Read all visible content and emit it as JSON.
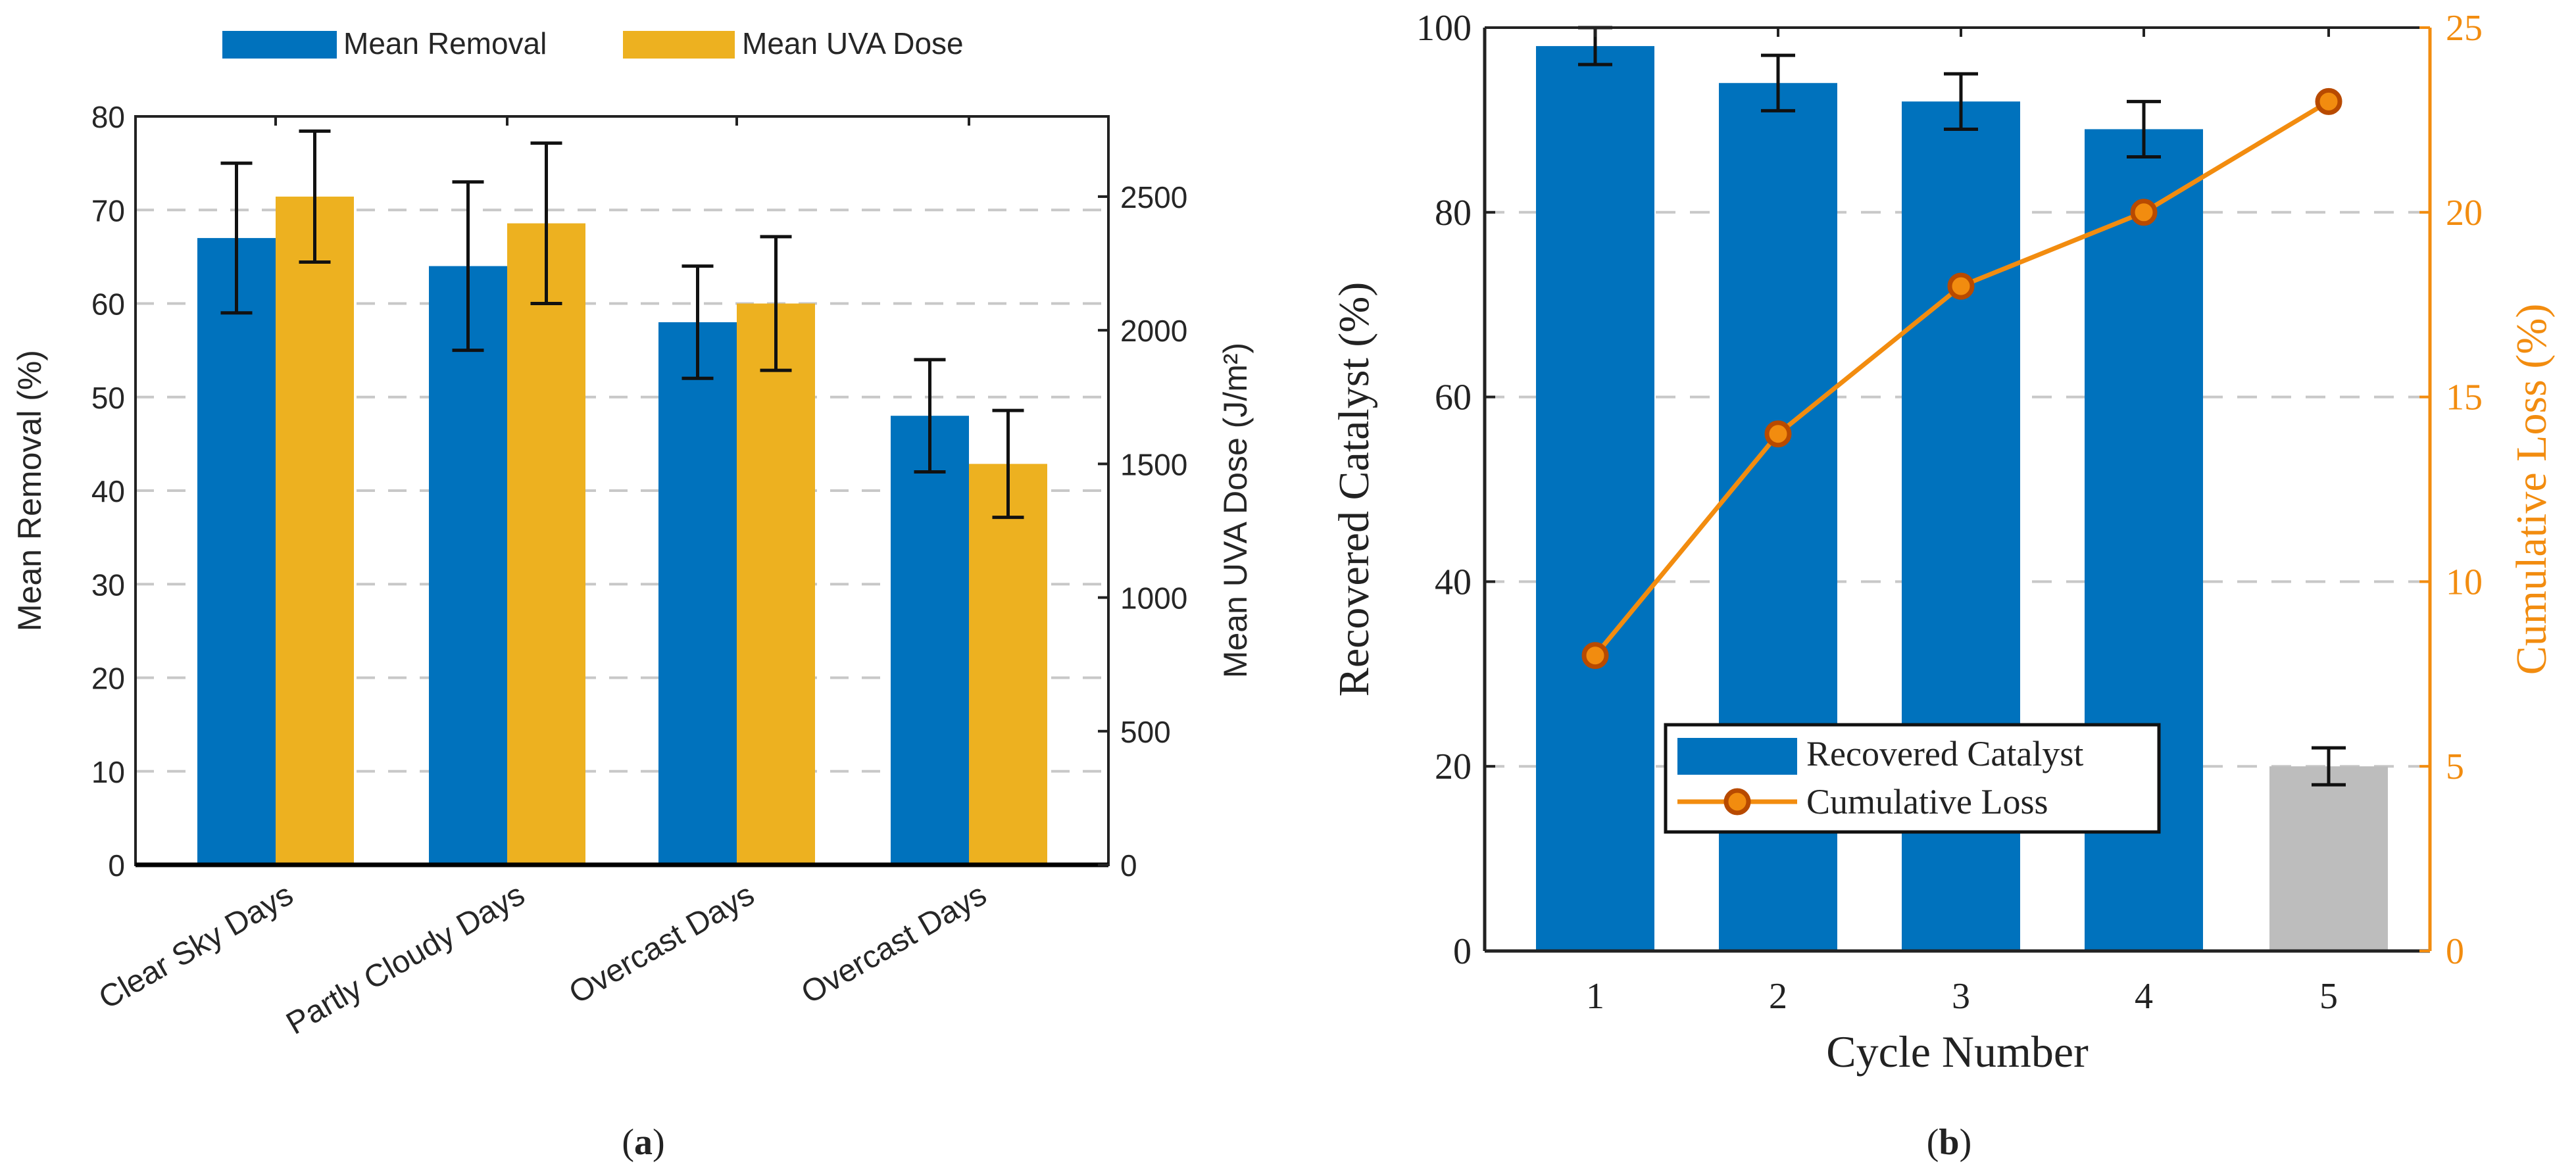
{
  "chart_data": [
    {
      "type": "bar",
      "panel_label": "a",
      "title": "",
      "categories": [
        "Clear Sky Days",
        "Partly Cloudy Days",
        "Overcast Days",
        "Overcast Days"
      ],
      "series": [
        {
          "name": "Mean Removal",
          "axis": "left",
          "color": "#0072BD",
          "values": [
            67,
            64,
            58,
            48
          ],
          "errors": [
            8,
            9,
            6,
            6
          ]
        },
        {
          "name": "Mean UVA Dose",
          "axis": "right",
          "color": "#EDB120",
          "values": [
            2500,
            2400,
            2100,
            1500
          ],
          "errors": [
            245,
            300,
            250,
            200
          ]
        }
      ],
      "ylabel": "Mean Removal (%)",
      "ylabel_right": "Mean  UVA  Dose  (J/m²)",
      "ylim": [
        0,
        80
      ],
      "ylim_right": [
        0,
        2800
      ],
      "yticks": [
        0,
        10,
        20,
        30,
        40,
        50,
        60,
        70,
        80
      ],
      "yticks_right": [
        0,
        500,
        1000,
        1500,
        2000,
        2500
      ],
      "grid": "horizontal dashed",
      "legend": "top, horizontal"
    },
    {
      "type": "bar+line",
      "panel_label": "b",
      "title": "",
      "categories": [
        "1",
        "2",
        "3",
        "4",
        "5"
      ],
      "xlabel": "Cycle Number",
      "series": [
        {
          "name": "Recovered Catalyst",
          "axis": "left",
          "type": "bar",
          "color": "#0072BD",
          "highlight_color": "#BDBDBD",
          "values": [
            98,
            94,
            92,
            89,
            20
          ],
          "errors": [
            2,
            3,
            3,
            3,
            2
          ]
        },
        {
          "name": "Cumulative Loss",
          "axis": "right",
          "type": "line",
          "color": "#F28C0F",
          "marker_color": "#B84A00",
          "values": [
            8,
            14,
            18,
            20,
            23
          ]
        }
      ],
      "ylabel": "Recovered Catalyst (%)",
      "ylabel_right": "Cumulative Loss (%)",
      "ylim": [
        0,
        100
      ],
      "ylim_right": [
        0,
        25
      ],
      "yticks": [
        0,
        20,
        40,
        60,
        80,
        100
      ],
      "yticks_right": [
        0,
        5,
        10,
        15,
        20,
        25
      ],
      "grid": "horizontal dashed",
      "legend": "lower-center"
    }
  ],
  "captions": {
    "a": "a",
    "b": "b"
  }
}
